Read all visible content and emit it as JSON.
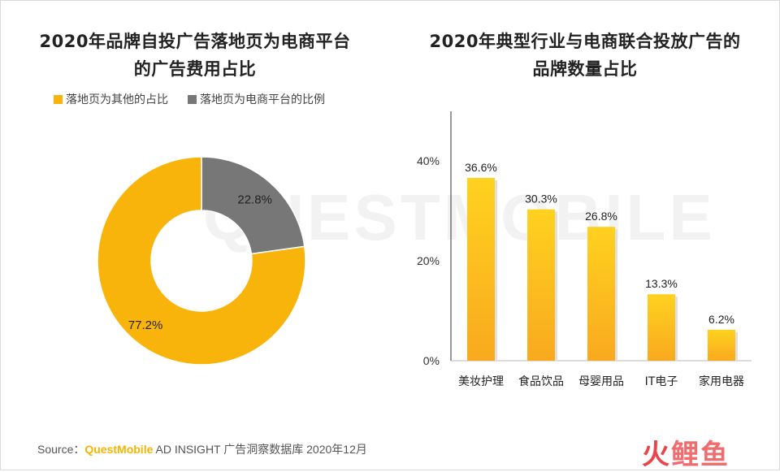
{
  "watermark": "QUESTMOBILE",
  "colors": {
    "donut_other": "#f9b40c",
    "donut_ecom": "#777777",
    "bar_top": "#ffd21f",
    "bar_bottom": "#f9a91f"
  },
  "chart_data": [
    {
      "type": "pie",
      "title": "2020年品牌自投广告落地页为电商平台的广告费用占比",
      "title_lines": [
        "2020年品牌自投广告落地页为电商平台",
        "的广告费用占比"
      ],
      "legend_position": "top",
      "series": [
        {
          "name": "落地页为其他的占比",
          "value": 77.2,
          "label": "77.2%"
        },
        {
          "name": "落地页为电商平台的比例",
          "value": 22.8,
          "label": "22.8%"
        }
      ]
    },
    {
      "type": "bar",
      "title": "2020年典型行业与电商联合投放广告的品牌数量占比",
      "title_lines": [
        "2020年典型行业与电商联合投放广告的",
        "品牌数量占比"
      ],
      "categories": [
        "美妆护理",
        "食品饮品",
        "母婴用品",
        "IT电子",
        "家用电器"
      ],
      "values": [
        36.6,
        30.3,
        26.8,
        13.3,
        6.2
      ],
      "value_labels": [
        "36.6%",
        "30.3%",
        "26.8%",
        "13.3%",
        "6.2%"
      ],
      "ylim": [
        0,
        40
      ],
      "yticks": [
        0,
        20,
        40
      ],
      "ytick_labels": [
        "0%",
        "20%",
        "40%"
      ],
      "grid": false
    }
  ],
  "footer": {
    "source_label": "Source：",
    "brand": "QuestMobile",
    "rest": " AD INSIGHT 广告洞察数据库 2020年12月",
    "logo_a": "火",
    "logo_b": "鲤鱼"
  }
}
